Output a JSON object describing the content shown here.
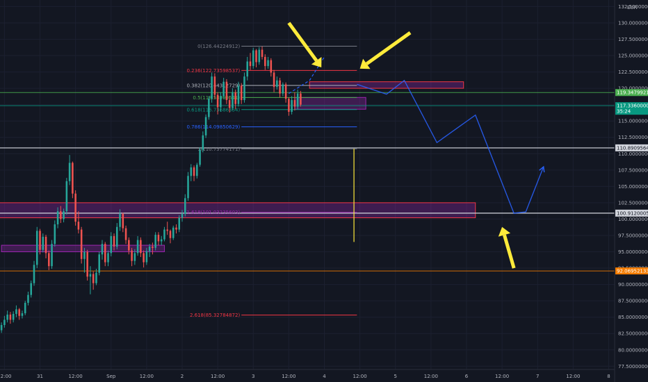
{
  "chart_data": {
    "type": "candlestick",
    "currency": "EUR",
    "price_axis": {
      "ticks": [
        "132.50000000",
        "130.00000000",
        "127.50000000",
        "125.00000000",
        "122.50000000",
        "120.00000000",
        "117.50000000",
        "115.00000000",
        "112.50000000",
        "110.00000000",
        "107.50000000",
        "105.00000000",
        "102.50000000",
        "100.00000000",
        "97.50000000",
        "95.00000000",
        "92.50000000",
        "90.00000000",
        "87.50000000",
        "85.00000000",
        "82.50000000",
        "80.00000000",
        "77.50000000"
      ],
      "ylim": [
        77.0,
        133.5
      ]
    },
    "time_axis": {
      "ticks": [
        "12:00",
        "31",
        "12:00",
        "Sep",
        "12:00",
        "2",
        "12:00",
        "3",
        "12:00",
        "4",
        "12:00",
        "5",
        "12:00",
        "6",
        "12:00",
        "7",
        "12:00",
        "8"
      ],
      "tick_hours": [
        -12,
        0,
        12,
        24,
        36,
        48,
        60,
        72,
        84,
        96,
        108,
        120,
        132,
        144,
        156,
        168,
        180,
        192
      ],
      "xlim": [
        -13.5,
        194
      ],
      "start_label": "31"
    },
    "candles": {
      "interval_hours": 1,
      "start_hour": -13,
      "ohlc": [
        [
          83.0,
          84.2,
          82.6,
          83.8
        ],
        [
          83.8,
          85.2,
          83.4,
          84.6
        ],
        [
          84.6,
          86.0,
          84.2,
          85.4
        ],
        [
          85.4,
          85.8,
          84.0,
          84.6
        ],
        [
          84.6,
          85.9,
          84.2,
          85.5
        ],
        [
          85.5,
          86.8,
          85.0,
          86.2
        ],
        [
          86.2,
          86.4,
          84.6,
          85.2
        ],
        [
          85.2,
          86.0,
          84.8,
          85.6
        ],
        [
          85.6,
          87.5,
          85.3,
          87.2
        ],
        [
          87.2,
          88.9,
          86.8,
          88.4
        ],
        [
          88.4,
          90.6,
          88.0,
          90.2
        ],
        [
          90.2,
          93.6,
          89.8,
          93.0
        ],
        [
          93.0,
          98.8,
          92.5,
          98.2
        ],
        [
          98.2,
          98.5,
          94.6,
          95.3
        ],
        [
          95.3,
          97.8,
          94.9,
          97.3
        ],
        [
          97.3,
          97.6,
          94.0,
          94.8
        ],
        [
          94.8,
          95.2,
          92.2,
          92.8
        ],
        [
          92.8,
          96.8,
          92.4,
          96.2
        ],
        [
          96.2,
          99.8,
          95.8,
          99.2
        ],
        [
          99.2,
          101.8,
          98.6,
          101.2
        ],
        [
          101.2,
          102.0,
          99.4,
          100.0
        ],
        [
          100.0,
          101.6,
          99.5,
          101.2
        ],
        [
          101.2,
          106.3,
          100.7,
          105.8
        ],
        [
          105.8,
          109.8,
          105.2,
          108.6
        ],
        [
          108.6,
          108.8,
          103.2,
          103.9
        ],
        [
          103.9,
          104.4,
          99.0,
          99.6
        ],
        [
          99.6,
          101.2,
          97.8,
          98.4
        ],
        [
          98.4,
          98.8,
          93.2,
          93.9
        ],
        [
          93.9,
          95.6,
          91.8,
          95.0
        ],
        [
          95.0,
          95.3,
          90.6,
          91.2
        ],
        [
          91.2,
          92.8,
          88.5,
          91.6
        ],
        [
          91.6,
          92.0,
          89.2,
          90.2
        ],
        [
          90.2,
          92.4,
          89.9,
          91.8
        ],
        [
          91.8,
          95.0,
          91.4,
          94.6
        ],
        [
          94.6,
          96.8,
          93.8,
          96.2
        ],
        [
          96.2,
          96.5,
          92.8,
          93.4
        ],
        [
          93.4,
          95.2,
          92.8,
          94.8
        ],
        [
          94.8,
          98.0,
          94.3,
          97.4
        ],
        [
          97.4,
          97.8,
          95.2,
          95.8
        ],
        [
          95.8,
          99.4,
          95.4,
          98.8
        ],
        [
          98.8,
          101.5,
          98.2,
          100.8
        ],
        [
          100.8,
          101.0,
          98.0,
          98.6
        ],
        [
          98.6,
          99.0,
          96.2,
          96.8
        ],
        [
          96.8,
          97.2,
          94.6,
          95.2
        ],
        [
          95.2,
          95.6,
          92.8,
          93.6
        ],
        [
          93.6,
          95.4,
          93.0,
          94.8
        ],
        [
          94.8,
          97.4,
          94.4,
          96.8
        ],
        [
          96.8,
          97.2,
          94.2,
          94.8
        ],
        [
          94.8,
          95.2,
          92.6,
          93.4
        ],
        [
          93.4,
          95.6,
          93.0,
          95.1
        ],
        [
          95.1,
          96.2,
          94.2,
          95.8
        ],
        [
          95.8,
          96.4,
          94.6,
          95.6
        ],
        [
          95.6,
          98.0,
          95.2,
          97.6
        ],
        [
          97.6,
          98.0,
          96.0,
          96.6
        ],
        [
          96.6,
          97.4,
          96.0,
          96.9
        ],
        [
          96.9,
          98.8,
          96.6,
          98.4
        ],
        [
          98.4,
          99.6,
          97.6,
          98.2
        ],
        [
          98.2,
          98.4,
          96.3,
          97.1
        ],
        [
          97.1,
          99.0,
          96.8,
          98.7
        ],
        [
          98.7,
          99.2,
          97.8,
          98.4
        ],
        [
          98.4,
          100.6,
          98.0,
          100.2
        ],
        [
          100.2,
          101.4,
          99.6,
          100.8
        ],
        [
          100.8,
          103.8,
          100.4,
          103.2
        ],
        [
          103.2,
          107.2,
          102.8,
          106.6
        ],
        [
          106.6,
          108.4,
          105.8,
          107.9
        ],
        [
          107.9,
          108.2,
          105.8,
          106.6
        ],
        [
          106.6,
          108.6,
          106.2,
          108.3
        ],
        [
          108.3,
          111.0,
          108.0,
          110.6
        ],
        [
          110.6,
          113.4,
          110.2,
          112.8
        ],
        [
          112.8,
          116.0,
          112.4,
          115.6
        ],
        [
          115.6,
          118.8,
          115.2,
          118.4
        ],
        [
          118.4,
          122.4,
          117.8,
          121.8
        ],
        [
          121.8,
          122.3,
          118.4,
          119.0
        ],
        [
          119.0,
          119.4,
          116.0,
          117.1
        ],
        [
          117.1,
          119.4,
          116.4,
          118.8
        ],
        [
          118.8,
          121.6,
          118.4,
          121.0
        ],
        [
          121.0,
          121.4,
          117.6,
          118.2
        ],
        [
          118.2,
          118.8,
          116.3,
          117.0
        ],
        [
          117.0,
          120.0,
          116.6,
          119.4
        ],
        [
          119.4,
          119.8,
          116.8,
          117.6
        ],
        [
          117.6,
          121.0,
          117.2,
          120.4
        ],
        [
          120.4,
          120.8,
          117.6,
          118.2
        ],
        [
          118.2,
          122.4,
          117.8,
          121.8
        ],
        [
          121.8,
          124.8,
          121.2,
          124.1
        ],
        [
          124.1,
          125.4,
          122.8,
          123.4
        ],
        [
          123.4,
          126.2,
          123.0,
          125.8
        ],
        [
          125.8,
          126.0,
          123.2,
          124.0
        ],
        [
          124.0,
          126.3,
          123.6,
          125.9
        ],
        [
          125.9,
          126.4,
          124.4,
          124.8
        ],
        [
          124.8,
          125.2,
          122.8,
          123.4
        ],
        [
          123.4,
          124.8,
          123.0,
          124.3
        ],
        [
          124.3,
          124.6,
          121.8,
          122.4
        ],
        [
          122.4,
          122.8,
          119.4,
          120.2
        ],
        [
          120.2,
          121.8,
          119.8,
          121.2
        ],
        [
          121.2,
          121.6,
          118.6,
          119.2
        ],
        [
          119.2,
          120.9,
          118.8,
          120.6
        ],
        [
          120.6,
          120.9,
          117.8,
          118.4
        ],
        [
          118.4,
          118.6,
          115.8,
          116.4
        ],
        [
          116.4,
          118.8,
          116.0,
          118.2
        ],
        [
          118.2,
          119.4,
          116.6,
          117.2
        ],
        [
          117.2,
          119.8,
          116.8,
          119.2
        ],
        [
          119.2,
          119.6,
          117.2,
          117.5
        ]
      ]
    },
    "annotations": {
      "fib_levels": [
        {
          "label": "0(126.44224912)",
          "value": 126.44,
          "color": "#787b86"
        },
        {
          "label": "0.236(122.73598537)",
          "value": 122.74,
          "color": "#f23645"
        },
        {
          "label": "0.382(120.44312729)",
          "value": 120.44,
          "color": "#b2b5be"
        },
        {
          "label": "0.5(118.58999541)",
          "value": 118.59,
          "color": "#4caf50"
        },
        {
          "label": "0.618(116.73686354)",
          "value": 116.74,
          "color": "#089981"
        },
        {
          "label": "0.786(114.09850629)",
          "value": 114.1,
          "color": "#2962ff"
        },
        {
          "label": "1(110.73774171)",
          "value": 110.74,
          "color": "#787b86"
        },
        {
          "label": "1.618(101.03235603)",
          "value": 101.03,
          "color": "#9c27b0"
        },
        {
          "label": "2.618(85.32784872)",
          "value": 85.33,
          "color": "#f23645"
        }
      ],
      "price_tags": [
        {
          "label": "119.34799214",
          "value": 119.35,
          "color": "#4caf50"
        },
        {
          "label": "117.33600000",
          "sublabel": "35:24",
          "value": 117.34,
          "color": "#089981"
        },
        {
          "label": "110.89095641",
          "value": 110.89,
          "color": "#d1d4dc"
        },
        {
          "label": "100.91200050",
          "value": 100.91,
          "color": "#d1d4dc"
        },
        {
          "label": "92.06952133",
          "value": 92.07,
          "color": "#f57c00"
        }
      ],
      "projection_path": [
        [
          107,
          120.6
        ],
        [
          117,
          119.1
        ],
        [
          123,
          121.2
        ],
        [
          134,
          111.7
        ],
        [
          147,
          115.9
        ],
        [
          160,
          100.9
        ],
        [
          164,
          101.1
        ],
        [
          170,
          108.0
        ]
      ],
      "projection_dashed": [
        [
          84,
          119.2
        ],
        [
          91,
          121.2
        ],
        [
          96,
          124.8
        ]
      ],
      "zones": [
        {
          "start": -19,
          "end": 147,
          "top": 102.5,
          "bottom": 100.2,
          "color": "#9c27b0",
          "border": "#f23645"
        },
        {
          "start": -13,
          "end": 42,
          "top": 96.0,
          "bottom": 95.0,
          "color": "#9c27b0",
          "border": "#9c27b0"
        },
        {
          "start": 91,
          "end": 143,
          "top": 121.0,
          "bottom": 120.0,
          "color": "#9c27b0",
          "border": "#f23645"
        },
        {
          "start": 86,
          "end": 110,
          "top": 118.6,
          "bottom": 116.8,
          "color": "#9c27b0",
          "border": "#9c27b0"
        }
      ],
      "vertical_marker": {
        "x": 106,
        "top": 110.74,
        "bottom": 96.5,
        "color": "#ffeb3b"
      },
      "arrows": [
        {
          "from": [
            84,
            130.0
          ],
          "to": [
            95,
            123.2
          ]
        },
        {
          "from": [
            125,
            128.5
          ],
          "to": [
            108,
            123.0
          ]
        },
        {
          "from": [
            160,
            92.5
          ],
          "to": [
            156,
            98.8
          ]
        }
      ]
    }
  }
}
